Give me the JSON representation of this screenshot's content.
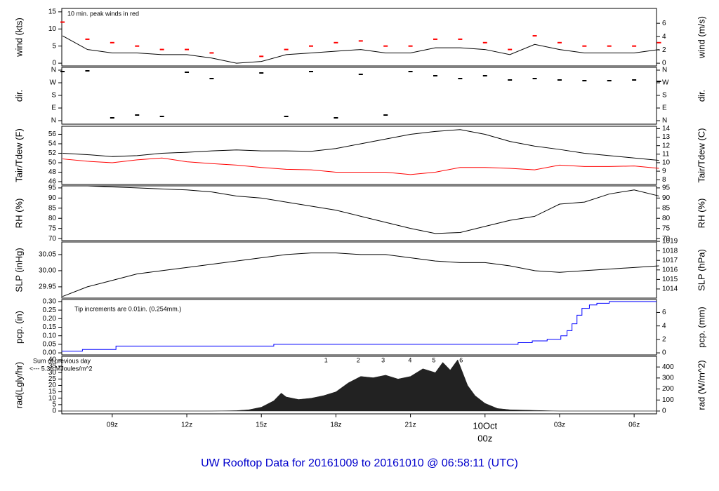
{
  "title": "UW Rooftop Data for 20161009  to  20161010 @ 06:58:11  (UTC)",
  "x_axis": {
    "xlim": [
      6.97,
      30.9
    ],
    "xticks": [
      {
        "value": 9,
        "label": "09z"
      },
      {
        "value": 12,
        "label": "12z"
      },
      {
        "value": 15,
        "label": "15z"
      },
      {
        "value": 18,
        "label": "18z"
      },
      {
        "value": 21,
        "label": "21z"
      },
      {
        "value": 24,
        "label": "00z"
      },
      {
        "value": 27,
        "label": "03z"
      },
      {
        "value": 30,
        "label": "06z"
      }
    ],
    "date": {
      "value": 24,
      "label": "10Oct"
    },
    "date_color": "#dd0000"
  },
  "chart_data": [
    {
      "type": "line",
      "ylabel": "wind (kts)",
      "y2label": "wind (m/s)",
      "ylim": [
        -0.8,
        16
      ],
      "yticks": [
        0,
        5,
        10,
        15
      ],
      "y2lim": [
        -0.41,
        8.23
      ],
      "y2ticks": [
        0,
        2,
        4,
        6
      ],
      "annotations": [
        "10 min. peak winds in red"
      ],
      "annotation_color": "#dd0000",
      "x": [
        7,
        8,
        9,
        10,
        11,
        12,
        13,
        14,
        15,
        16,
        17,
        18,
        19,
        20,
        21,
        22,
        23,
        24,
        25,
        26,
        27,
        28,
        29,
        30,
        31
      ],
      "series": [
        {
          "color": "#000000",
          "style": "line",
          "values": [
            8,
            4,
            3,
            3,
            2.5,
            2.5,
            1.5,
            0,
            0.5,
            2.5,
            3,
            3.5,
            4,
            3,
            3,
            4.5,
            4.5,
            4,
            2.5,
            5.5,
            4,
            3,
            3,
            3,
            4
          ]
        },
        {
          "color": "#ff0000",
          "style": "dash",
          "values": [
            12,
            7,
            6,
            5,
            4,
            4,
            3,
            null,
            2,
            4,
            5,
            6,
            6.5,
            5,
            5,
            7,
            7,
            6,
            4,
            8,
            6,
            5,
            5,
            5,
            6
          ]
        }
      ]
    },
    {
      "type": "scatter",
      "ylabel": "dir.",
      "y2label": "dir.",
      "ylim": [
        -25,
        380
      ],
      "yticks": [
        {
          "value": 0,
          "label": "N"
        },
        {
          "value": 90,
          "label": "E"
        },
        {
          "value": 180,
          "label": "S"
        },
        {
          "value": 270,
          "label": "W"
        },
        {
          "value": 360,
          "label": "N"
        }
      ],
      "y2lim": [
        -25,
        380
      ],
      "y2ticks": [
        {
          "value": 0,
          "label": "N"
        },
        {
          "value": 90,
          "label": "E"
        },
        {
          "value": 180,
          "label": "S"
        },
        {
          "value": 270,
          "label": "W"
        },
        {
          "value": 360,
          "label": "N"
        }
      ],
      "x": [
        7,
        8,
        9,
        10,
        11,
        12,
        13,
        14,
        15,
        16,
        17,
        18,
        19,
        20,
        21,
        22,
        23,
        24,
        25,
        26,
        27,
        28,
        29,
        30,
        31
      ],
      "series": [
        {
          "color": "#000000",
          "style": "dash",
          "values": [
            350,
            355,
            20,
            40,
            30,
            345,
            300,
            null,
            340,
            30,
            350,
            20,
            330,
            40,
            350,
            320,
            300,
            320,
            290,
            300,
            290,
            285,
            285,
            290,
            280
          ]
        }
      ]
    },
    {
      "type": "line",
      "ylabel": "Tair/Tdew (F)",
      "y2label": "Tair/Tdew (C)",
      "ylim": [
        45.4,
        57.7
      ],
      "yticks": [
        46,
        48,
        50,
        52,
        54,
        56
      ],
      "y2lim": [
        7.44,
        14.28
      ],
      "y2ticks": [
        8,
        9,
        10,
        11,
        12,
        13,
        14
      ],
      "x": [
        7,
        8,
        9,
        10,
        11,
        12,
        13,
        14,
        15,
        16,
        17,
        18,
        19,
        20,
        21,
        22,
        23,
        24,
        25,
        26,
        27,
        28,
        29,
        30,
        31
      ],
      "series": [
        {
          "color": "#000000",
          "style": "line",
          "values": [
            52,
            51.7,
            51.3,
            51.5,
            52,
            52.2,
            52.5,
            52.7,
            52.5,
            52.5,
            52.4,
            53,
            54,
            55,
            56,
            56.6,
            57,
            56,
            54.5,
            53.5,
            52.8,
            52,
            51.5,
            51,
            50.5
          ]
        },
        {
          "color": "#ff0000",
          "style": "line",
          "values": [
            50.8,
            50.3,
            50,
            50.6,
            51,
            50.2,
            49.8,
            49.5,
            49,
            48.6,
            48.5,
            48,
            48,
            48,
            47.5,
            48,
            49,
            49,
            48.8,
            48.5,
            49.5,
            49.2,
            49.2,
            49.3,
            48.8
          ]
        }
      ]
    },
    {
      "type": "line",
      "ylabel": "RH (%)",
      "y2label": "RH (%)",
      "ylim": [
        69,
        96
      ],
      "yticks": [
        70,
        75,
        80,
        85,
        90,
        95
      ],
      "y2lim": [
        69,
        96
      ],
      "y2ticks": [
        70,
        75,
        80,
        85,
        90,
        95
      ],
      "x": [
        7,
        8,
        9,
        10,
        11,
        12,
        13,
        14,
        15,
        16,
        17,
        18,
        19,
        20,
        21,
        22,
        23,
        24,
        25,
        26,
        27,
        28,
        29,
        30,
        31
      ],
      "series": [
        {
          "color": "#000000",
          "style": "line",
          "values": [
            96,
            96,
            95.5,
            95,
            94.5,
            94,
            93,
            91,
            90,
            88,
            86,
            84,
            81,
            78,
            75,
            72.5,
            73,
            76,
            79,
            81,
            87,
            88,
            92,
            94,
            91
          ]
        }
      ]
    },
    {
      "type": "line",
      "ylabel": "SLP (inHg)",
      "y2label": "SLP (hPa)",
      "ylim": [
        29.915,
        30.089
      ],
      "yticks": [
        29.95,
        {
          "value": 30,
          "label": "30.00"
        },
        30.05
      ],
      "y2lim": [
        1013.04,
        1018.93
      ],
      "y2ticks": [
        1014,
        1015,
        1016,
        1017,
        1018,
        1019
      ],
      "x": [
        7,
        8,
        9,
        10,
        11,
        12,
        13,
        14,
        15,
        16,
        17,
        18,
        19,
        20,
        21,
        22,
        23,
        24,
        25,
        26,
        27,
        28,
        29,
        30,
        31
      ],
      "series": [
        {
          "color": "#000000",
          "style": "line",
          "values": [
            29.92,
            29.95,
            29.97,
            29.99,
            30.0,
            30.01,
            30.02,
            30.03,
            30.04,
            30.05,
            30.055,
            30.055,
            30.05,
            30.05,
            30.04,
            30.03,
            30.025,
            30.025,
            30.015,
            30.0,
            29.995,
            30.0,
            30.005,
            30.01,
            30.015
          ]
        }
      ]
    },
    {
      "type": "step",
      "ylabel": "pcp. (in)",
      "y2label": "pcp. (mm)",
      "ylim": [
        -0.012,
        0.312
      ],
      "yticks": [
        {
          "value": 0,
          "label": "0.00"
        },
        0.05,
        {
          "value": 0.1,
          "label": "0.10"
        },
        0.15,
        {
          "value": 0.2,
          "label": "0.20"
        },
        0.25,
        {
          "value": 0.3,
          "label": "0.30"
        }
      ],
      "y2lim": [
        -0.305,
        7.92
      ],
      "y2ticks": [
        0,
        2,
        4,
        6
      ],
      "annotations": [
        "Tip increments are 0.01in. (0.254mm.)"
      ],
      "annotation_color": "#0000aa",
      "x": [
        6.97,
        7.8,
        9.15,
        15.5,
        25.33,
        25.9,
        26.5,
        27.05,
        27.3,
        27.5,
        27.7,
        27.9,
        28.2,
        28.5,
        29,
        30.9
      ],
      "series": [
        {
          "color": "#0000ff",
          "style": "line",
          "values": [
            0.01,
            0.02,
            0.04,
            0.05,
            0.06,
            0.07,
            0.08,
            0.1,
            0.13,
            0.17,
            0.22,
            0.26,
            0.28,
            0.29,
            0.3,
            0.3
          ]
        }
      ]
    },
    {
      "type": "area",
      "ylabel": "rad(Lgly/hr)",
      "y2label": "rad (W/m^2)",
      "ylim": [
        -2.2,
        42.7
      ],
      "yticks": [
        0,
        5,
        10,
        15,
        20,
        25,
        30,
        35,
        40
      ],
      "y2lim": [
        -25.6,
        496.6
      ],
      "y2ticks": [
        0,
        100,
        200,
        300,
        400
      ],
      "annotations": [
        "Sum of previous day",
        "<--- 5.36 MJoules/m^2"
      ],
      "annotation_color": "#9900cc",
      "hour_marks": {
        "labels": [
          1,
          2,
          3,
          4,
          5,
          6
        ],
        "x": [
          17.6,
          18.9,
          19.9,
          20.98,
          21.94,
          23.04
        ],
        "color": "#9900cc"
      },
      "x": [
        7,
        13,
        14,
        14.5,
        15,
        15.5,
        15.8,
        16,
        16.5,
        17,
        17.5,
        18,
        18.5,
        19,
        19.5,
        20,
        20.5,
        21,
        21.5,
        22,
        22.3,
        22.6,
        22.9,
        23.1,
        23.3,
        23.6,
        24,
        24.5,
        25,
        26,
        27,
        31
      ],
      "series": [
        {
          "color": "#222222",
          "style": "line",
          "values": [
            0,
            0,
            0.3,
            1,
            3,
            8,
            14,
            11,
            9,
            10,
            12,
            15,
            22,
            27,
            26,
            28,
            25,
            27,
            33,
            30,
            38,
            32,
            40,
            30,
            20,
            12,
            6,
            2,
            1,
            0.5,
            0,
            0
          ]
        }
      ]
    }
  ]
}
